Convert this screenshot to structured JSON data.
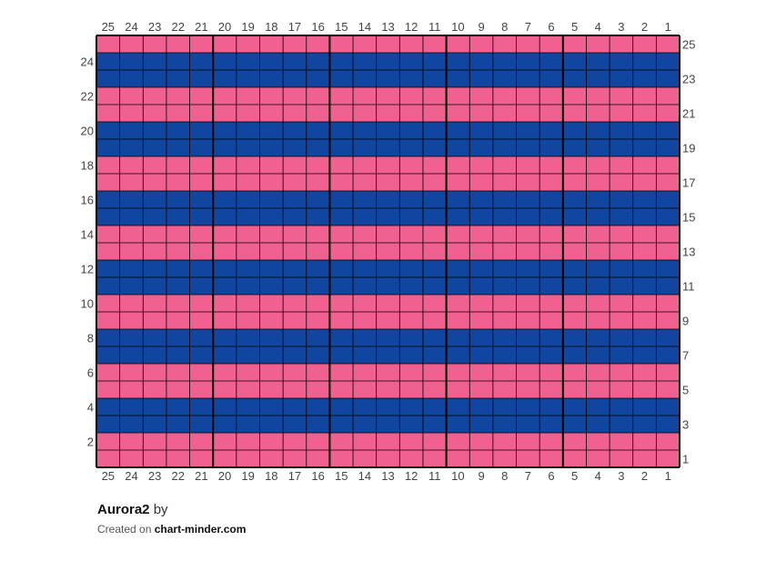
{
  "title": "Aurora2",
  "by_label": "by",
  "created_on_label": "Created on",
  "site": "chart-minder.com",
  "chart_data": {
    "type": "table",
    "columns": 25,
    "rows": 25,
    "column_labels": [
      "25",
      "24",
      "23",
      "22",
      "21",
      "20",
      "19",
      "18",
      "17",
      "16",
      "15",
      "14",
      "13",
      "12",
      "11",
      "10",
      "9",
      "8",
      "7",
      "6",
      "5",
      "4",
      "3",
      "2",
      "1"
    ],
    "row_labels_right": [
      "25",
      "23",
      "21",
      "19",
      "17",
      "15",
      "13",
      "11",
      "9",
      "7",
      "5",
      "3",
      "1"
    ],
    "row_labels_left": [
      "24",
      "22",
      "20",
      "18",
      "16",
      "14",
      "12",
      "10",
      "8",
      "6",
      "4",
      "2"
    ],
    "row_colors_top_to_bottom": [
      "pink",
      "blue",
      "blue",
      "pink",
      "pink",
      "blue",
      "blue",
      "pink",
      "pink",
      "blue",
      "blue",
      "pink",
      "pink",
      "blue",
      "blue",
      "pink",
      "pink",
      "blue",
      "blue",
      "pink",
      "pink",
      "blue",
      "blue",
      "pink",
      "pink"
    ],
    "palette": {
      "pink": "#f06090",
      "blue": "#1045a0",
      "grid": "#000000"
    }
  }
}
